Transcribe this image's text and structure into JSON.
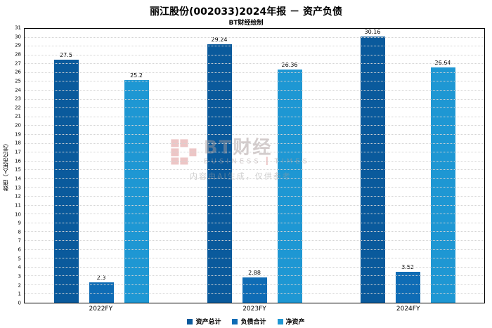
{
  "title": "丽江股份(002033)2024年报 － 资产负债",
  "subtitle": "BT财经绘制",
  "ylabel": "数值（人民币亿元）",
  "watermark": {
    "brand": "BT财经",
    "brand_sub": "BUSINESS TIMES",
    "note": "内容由AI生成，仅供参考"
  },
  "chart_data": {
    "type": "bar",
    "categories": [
      "2022FY",
      "2023FY",
      "2024FY"
    ],
    "series": [
      {
        "name": "资产总计",
        "color": "#0a5a9c",
        "values": [
          27.5,
          29.24,
          30.16
        ]
      },
      {
        "name": "负债合计",
        "color": "#0f6cb5",
        "values": [
          2.3,
          2.88,
          3.52
        ]
      },
      {
        "name": "净资产",
        "color": "#1e97d3",
        "values": [
          25.2,
          26.36,
          26.64
        ]
      }
    ],
    "ylim": [
      0,
      31
    ],
    "ytick_step": 1,
    "grid": true,
    "legend_position": "bottom"
  }
}
